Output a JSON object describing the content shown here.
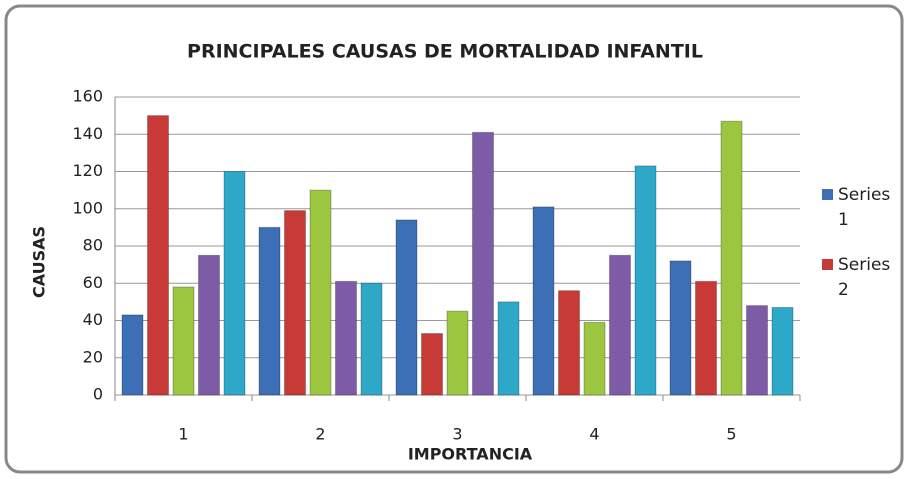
{
  "chart_data": {
    "type": "bar",
    "title": "PRINCIPALES CAUSAS DE MORTALIDAD INFANTIL",
    "xlabel": "IMPORTANCIA",
    "ylabel": "CAUSAS",
    "categories": [
      "1",
      "2",
      "3",
      "4",
      "5"
    ],
    "series": [
      {
        "name": "Series 1",
        "color": "#3c6fb5",
        "values": [
          43,
          90,
          94,
          101,
          72
        ]
      },
      {
        "color": "#c73a35",
        "name": "Series 2",
        "values": [
          150,
          99,
          33,
          56,
          61
        ]
      },
      {
        "color": "#9cc63f",
        "values": [
          58,
          110,
          45,
          39,
          147
        ]
      },
      {
        "color": "#7e5ba7",
        "values": [
          75,
          61,
          141,
          75,
          48
        ]
      },
      {
        "color": "#2da8c9",
        "values": [
          120,
          60,
          50,
          123,
          47
        ]
      }
    ],
    "ylim": [
      0,
      160
    ],
    "yticks": [
      0,
      20,
      40,
      60,
      80,
      100,
      120,
      140,
      160
    ],
    "grid": true,
    "legend": "right"
  }
}
